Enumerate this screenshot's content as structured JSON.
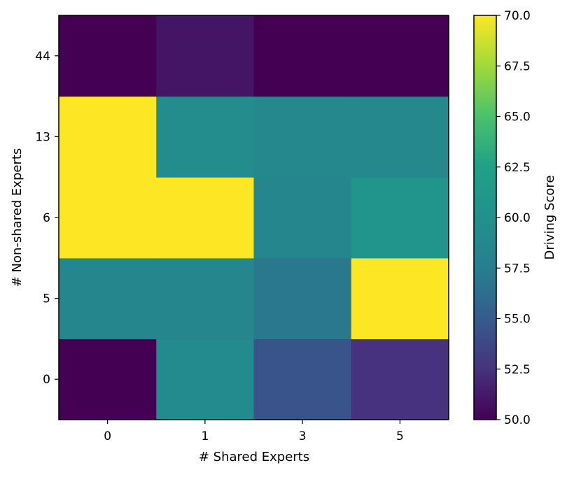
{
  "chart_data": {
    "type": "heatmap",
    "title": "",
    "xlabel": "# Shared Experts",
    "ylabel": "# Non-shared Experts",
    "x_categories": [
      "0",
      "1",
      "3",
      "5"
    ],
    "y_categories": [
      "0",
      "5",
      "6",
      "13",
      "44"
    ],
    "values": [
      [
        50.0,
        59.0,
        54.5,
        52.5
      ],
      [
        58.5,
        58.5,
        57.0,
        70.0
      ],
      [
        70.0,
        70.0,
        58.5,
        60.5
      ],
      [
        70.0,
        59.5,
        58.7,
        58.7
      ],
      [
        50.0,
        51.0,
        50.0,
        50.0
      ]
    ],
    "colormap": "viridis",
    "vmin": 50.0,
    "vmax": 70.0,
    "colorbar": {
      "label": "Driving Score",
      "ticks": [
        "50.0",
        "52.5",
        "55.0",
        "57.5",
        "60.0",
        "62.5",
        "65.0",
        "67.5",
        "70.0"
      ]
    },
    "grid": false,
    "legend": "none"
  }
}
